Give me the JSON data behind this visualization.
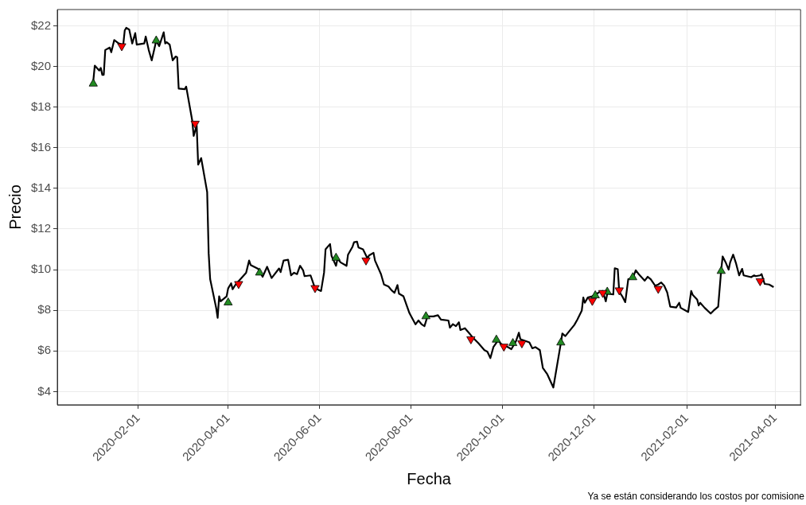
{
  "chart_data": {
    "type": "line",
    "xlabel": "Fecha",
    "ylabel": "Precio",
    "annotations": [
      "Ya se están considerando los costos por comisione"
    ],
    "xlim": [
      "2019-12-09",
      "2021-04-18"
    ],
    "ylim": [
      3.35,
      22.8
    ],
    "xticks": [
      "2020-02-01",
      "2020-04-01",
      "2020-06-01",
      "2020-08-01",
      "2020-10-01",
      "2020-12-01",
      "2021-02-01",
      "2021-04-01"
    ],
    "yticks": [
      {
        "value": 4,
        "label": "$4"
      },
      {
        "value": 6,
        "label": "$6"
      },
      {
        "value": 8,
        "label": "$8"
      },
      {
        "value": 10,
        "label": "$10"
      },
      {
        "value": 12,
        "label": "$12"
      },
      {
        "value": 14,
        "label": "$14"
      },
      {
        "value": 16,
        "label": "$16"
      },
      {
        "value": 18,
        "label": "$18"
      },
      {
        "value": 20,
        "label": "$20"
      },
      {
        "value": 22,
        "label": "$22"
      }
    ],
    "grid": true,
    "legend": false,
    "line_style": "solid",
    "series": [
      {
        "color": "#000000",
        "x": [
          "2020-01-02",
          "2020-01-03",
          "2020-01-06",
          "2020-01-07",
          "2020-01-08",
          "2020-01-09",
          "2020-01-10",
          "2020-01-13",
          "2020-01-14",
          "2020-01-16",
          "2020-01-19",
          "2020-01-22",
          "2020-01-23",
          "2020-01-24",
          "2020-01-26",
          "2020-01-28",
          "2020-01-30",
          "2020-01-31",
          "2020-02-05",
          "2020-02-06",
          "2020-02-08",
          "2020-02-10",
          "2020-02-13",
          "2020-02-15",
          "2020-02-18",
          "2020-02-19",
          "2020-02-20",
          "2020-02-22",
          "2020-02-24",
          "2020-02-26",
          "2020-02-27",
          "2020-02-28",
          "2020-03-03",
          "2020-03-04",
          "2020-03-08",
          "2020-03-09",
          "2020-03-11",
          "2020-03-12",
          "2020-03-14",
          "2020-03-18",
          "2020-03-19",
          "2020-03-20",
          "2020-03-24",
          "2020-03-25",
          "2020-03-26",
          "2020-03-27",
          "2020-03-31",
          "2020-04-01",
          "2020-04-03",
          "2020-04-04",
          "2020-04-06",
          "2020-04-13",
          "2020-04-15",
          "2020-04-16",
          "2020-04-21",
          "2020-04-24",
          "2020-04-27",
          "2020-04-30",
          "2020-05-05",
          "2020-05-06",
          "2020-05-08",
          "2020-05-11",
          "2020-05-13",
          "2020-05-15",
          "2020-05-17",
          "2020-05-19",
          "2020-05-21",
          "2020-05-22",
          "2020-05-26",
          "2020-05-29",
          "2020-06-02",
          "2020-06-04",
          "2020-06-05",
          "2020-06-08",
          "2020-06-09",
          "2020-06-12",
          "2020-06-13",
          "2020-06-15",
          "2020-06-19",
          "2020-06-20",
          "2020-06-23",
          "2020-06-24",
          "2020-06-26",
          "2020-06-27",
          "2020-06-30",
          "2020-07-03",
          "2020-07-04",
          "2020-07-07",
          "2020-07-08",
          "2020-07-12",
          "2020-07-14",
          "2020-07-17",
          "2020-07-19",
          "2020-07-21",
          "2020-07-23",
          "2020-07-24",
          "2020-07-27",
          "2020-07-31",
          "2020-08-04",
          "2020-08-06",
          "2020-08-08",
          "2020-08-10",
          "2020-08-12",
          "2020-08-16",
          "2020-08-19",
          "2020-08-21",
          "2020-08-26",
          "2020-08-27",
          "2020-08-29",
          "2020-08-31",
          "2020-09-02",
          "2020-09-03",
          "2020-09-06",
          "2020-09-09",
          "2020-09-11",
          "2020-09-15",
          "2020-09-19",
          "2020-09-21",
          "2020-09-23",
          "2020-09-25",
          "2020-09-28",
          "2020-10-02",
          "2020-10-04",
          "2020-10-07",
          "2020-10-10",
          "2020-10-12",
          "2020-10-13",
          "2020-10-19",
          "2020-10-21",
          "2020-10-23",
          "2020-10-26",
          "2020-10-28",
          "2020-10-31",
          "2020-11-04",
          "2020-11-09",
          "2020-11-10",
          "2020-11-12",
          "2020-11-18",
          "2020-11-20",
          "2020-11-23",
          "2020-11-24",
          "2020-11-25",
          "2020-11-27",
          "2020-11-30",
          "2020-12-02",
          "2020-12-05",
          "2020-12-07",
          "2020-12-09",
          "2020-12-10",
          "2020-12-14",
          "2020-12-15",
          "2020-12-17",
          "2020-12-18",
          "2020-12-20",
          "2020-12-22",
          "2020-12-24",
          "2020-12-27",
          "2020-12-29",
          "2020-12-31",
          "2021-01-04",
          "2021-01-06",
          "2021-01-08",
          "2021-01-11",
          "2021-01-13",
          "2021-01-15",
          "2021-01-17",
          "2021-01-19",
          "2021-01-21",
          "2021-01-25",
          "2021-01-27",
          "2021-01-28",
          "2021-02-01",
          "2021-02-02",
          "2021-02-04",
          "2021-02-05",
          "2021-02-08",
          "2021-02-09",
          "2021-02-10",
          "2021-02-13",
          "2021-02-17",
          "2021-02-19",
          "2021-02-22",
          "2021-02-24",
          "2021-02-25",
          "2021-02-27",
          "2021-03-01",
          "2021-03-02",
          "2021-03-04",
          "2021-03-06",
          "2021-03-08",
          "2021-03-10",
          "2021-03-11",
          "2021-03-16",
          "2021-03-18",
          "2021-03-19",
          "2021-03-22",
          "2021-03-23",
          "2021-03-25",
          "2021-03-28",
          "2021-03-31"
        ],
        "values": [
          19.27,
          20.04,
          19.8,
          19.93,
          19.59,
          19.59,
          20.81,
          20.93,
          20.7,
          21.3,
          21.13,
          21.07,
          21.77,
          21.9,
          21.81,
          21.13,
          21.64,
          21.07,
          21.13,
          21.47,
          20.81,
          20.3,
          21.26,
          21.0,
          21.68,
          21.13,
          21.19,
          21.07,
          20.3,
          20.49,
          20.45,
          18.91,
          18.88,
          19.01,
          17.35,
          16.58,
          17.09,
          15.17,
          15.49,
          13.82,
          10.81,
          9.53,
          8.12,
          7.63,
          8.69,
          8.44,
          8.69,
          9.08,
          9.33,
          9.04,
          9.27,
          9.85,
          10.45,
          10.23,
          10.04,
          9.65,
          10.14,
          9.59,
          10.06,
          9.88,
          10.45,
          10.49,
          9.72,
          9.85,
          9.78,
          10.19,
          9.97,
          9.68,
          9.72,
          9.08,
          8.95,
          9.85,
          11.0,
          11.26,
          10.68,
          10.19,
          10.55,
          10.36,
          10.19,
          10.74,
          11.13,
          11.35,
          11.38,
          11.09,
          11.0,
          10.55,
          10.7,
          10.83,
          10.45,
          9.78,
          9.27,
          9.17,
          8.99,
          8.86,
          9.24,
          8.82,
          8.69,
          7.86,
          7.31,
          7.5,
          7.32,
          7.22,
          7.7,
          7.7,
          7.76,
          7.54,
          7.5,
          7.15,
          7.32,
          7.22,
          7.41,
          7.03,
          7.12,
          6.86,
          6.68,
          6.38,
          6.04,
          5.96,
          5.65,
          6.19,
          6.51,
          6.22,
          6.22,
          6.09,
          6.47,
          6.9,
          6.58,
          6.42,
          6.13,
          6.19,
          6.04,
          5.17,
          4.85,
          4.2,
          6.38,
          6.86,
          6.73,
          7.28,
          7.54,
          7.99,
          8.63,
          8.37,
          8.63,
          8.69,
          8.76,
          8.91,
          8.95,
          8.44,
          8.82,
          8.78,
          10.07,
          10.02,
          8.91,
          8.69,
          8.4,
          9.53,
          9.59,
          9.97,
          9.78,
          9.46,
          9.65,
          9.53,
          9.21,
          9.27,
          9.37,
          9.21,
          8.88,
          8.18,
          8.14,
          8.37,
          8.12,
          7.96,
          7.92,
          8.95,
          8.76,
          8.53,
          8.24,
          8.37,
          8.12,
          7.84,
          7.99,
          8.18,
          9.97,
          10.65,
          10.36,
          10.0,
          10.36,
          10.74,
          10.29,
          9.72,
          10.04,
          9.72,
          9.63,
          9.72,
          9.68,
          9.72,
          9.78,
          9.3,
          9.27,
          9.14
        ]
      },
      {
        "type": "scatter",
        "color": "#228b22",
        "marker": "triangle",
        "x": [
          "2020-01-02",
          "2020-02-13",
          "2020-04-01",
          "2020-04-22",
          "2020-06-12",
          "2020-08-11",
          "2020-09-27",
          "2020-10-08",
          "2020-11-09",
          "2020-12-02",
          "2020-12-10",
          "2020-12-27",
          "2021-02-24"
        ],
        "values": [
          19.15,
          21.27,
          8.38,
          9.85,
          10.58,
          7.7,
          6.55,
          6.38,
          6.41,
          8.73,
          8.91,
          9.62,
          9.93
        ]
      },
      {
        "type": "scatter",
        "color": "#ff0000",
        "marker": "triangle",
        "x": [
          "2020-01-21",
          "2020-03-10",
          "2020-04-08",
          "2020-05-29",
          "2020-07-02",
          "2020-09-10",
          "2020-10-02",
          "2020-10-14",
          "2020-11-30",
          "2020-12-07",
          "2020-12-18",
          "2021-01-13",
          "2021-03-22"
        ],
        "values": [
          21.0,
          17.19,
          9.3,
          9.1,
          10.46,
          6.58,
          6.22,
          6.38,
          8.47,
          8.86,
          8.99,
          9.06,
          9.44
        ]
      }
    ]
  }
}
